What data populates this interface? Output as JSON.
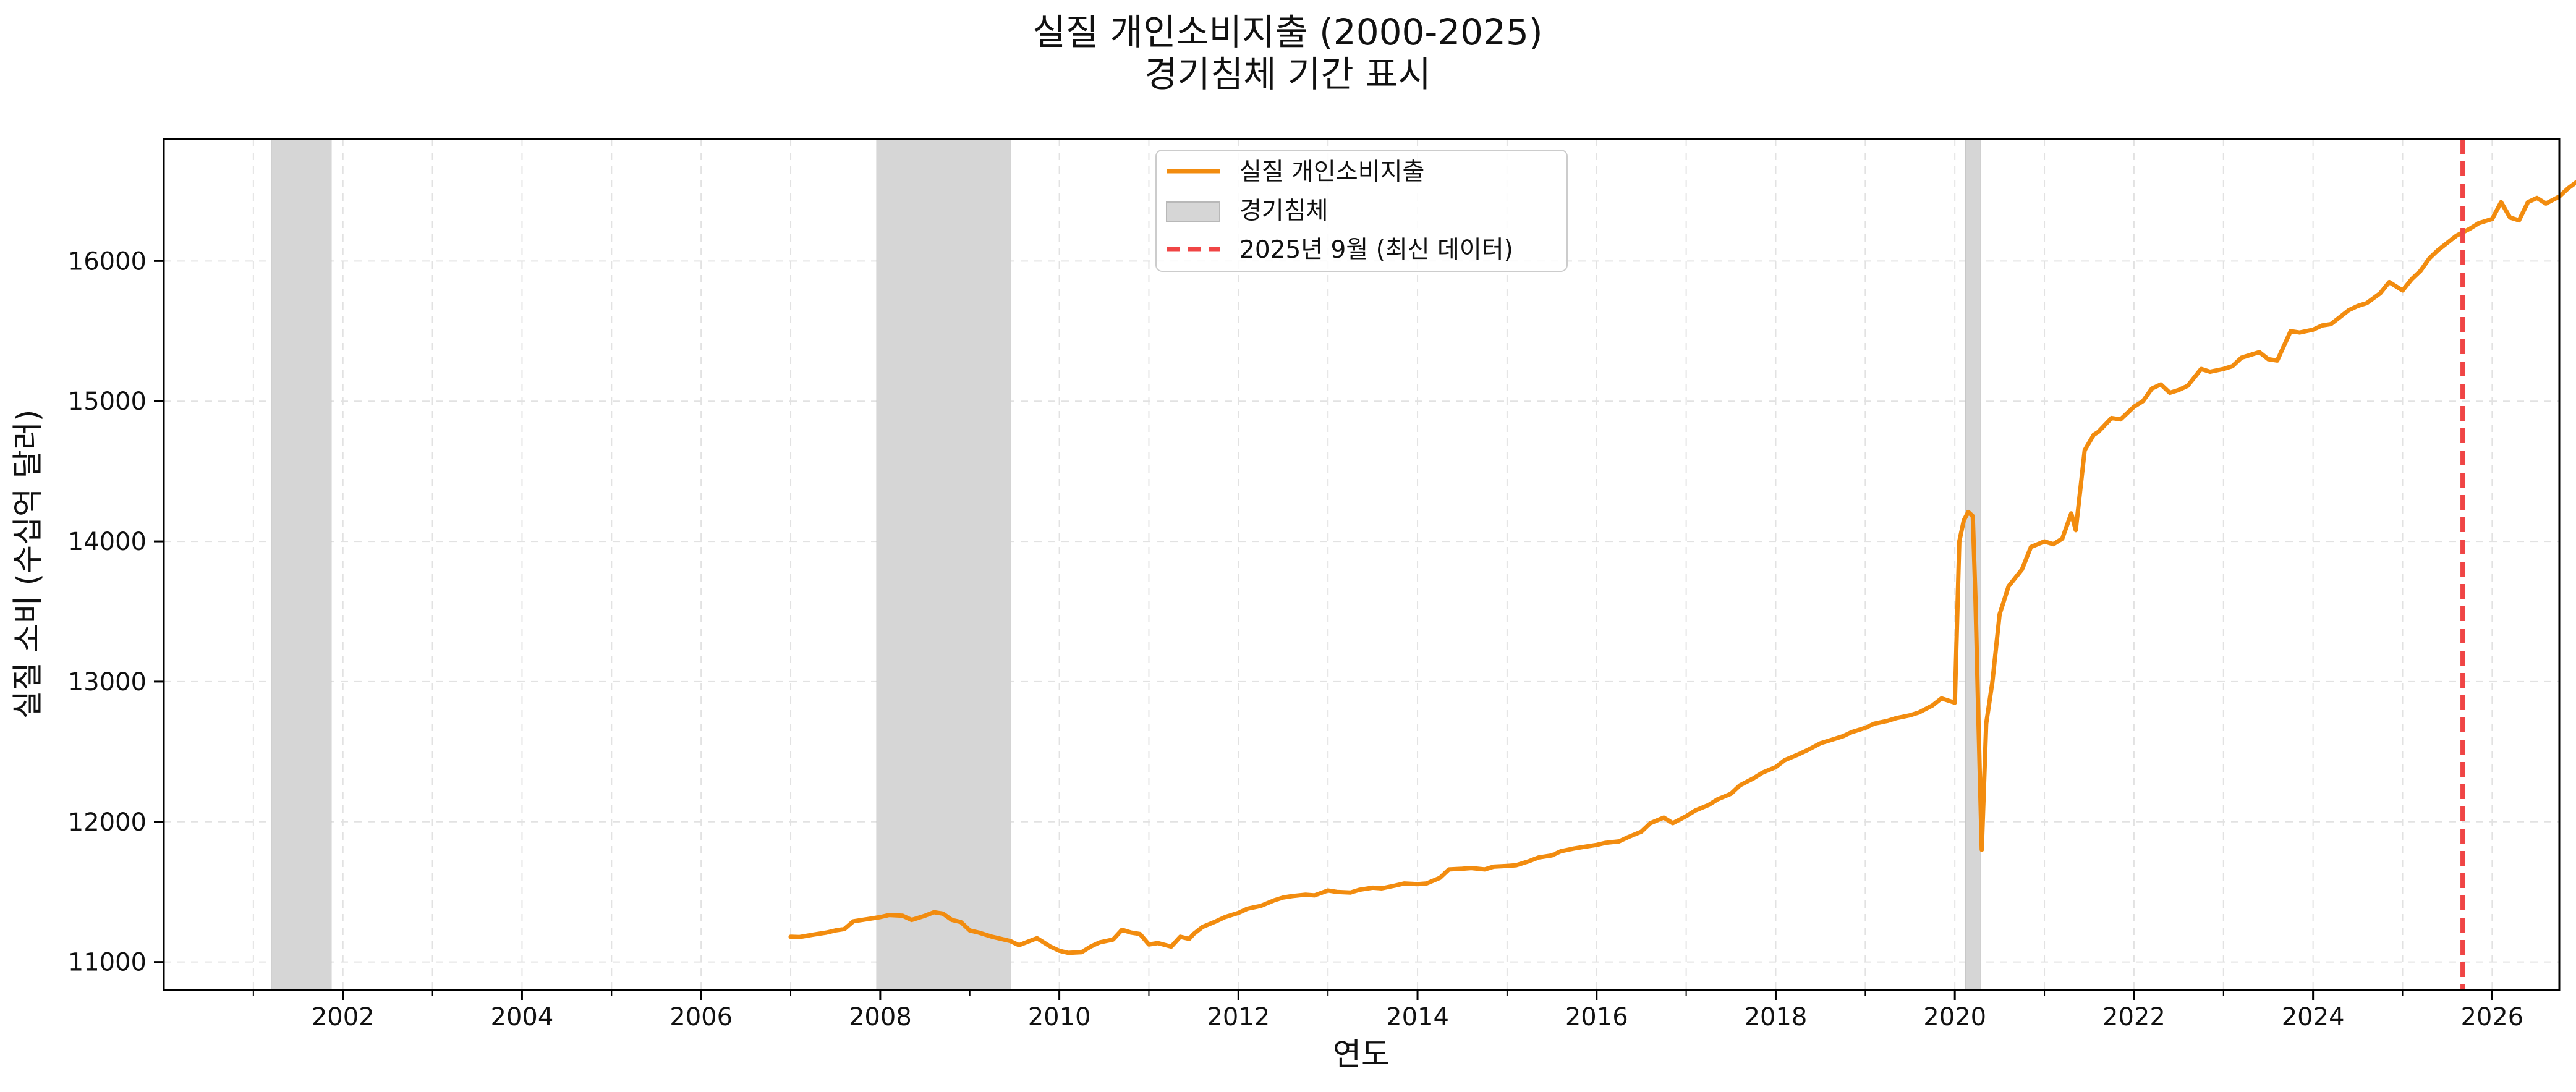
{
  "chart_data": {
    "type": "line",
    "title": "실질 개인소비지출 (2000-2025)",
    "subtitle": "경기침체 기간 표시",
    "xlabel": "연도",
    "ylabel": "실질 소비 (수십억 달러)",
    "xlim": [
      2000.0,
      2026.75
    ],
    "ylim": [
      10800,
      16870
    ],
    "x_ticks": [
      "2002",
      "2004",
      "2006",
      "2008",
      "2010",
      "2012",
      "2014",
      "2016",
      "2018",
      "2020",
      "2022",
      "2024",
      "2026"
    ],
    "y_ticks": [
      "11000",
      "12000",
      "13000",
      "14000",
      "15000",
      "16000"
    ],
    "grid": true,
    "legend_position": "top-center",
    "legend": {
      "series_label": "실질 개인소비지출",
      "recession_label": "경기침체",
      "latest_label": "2025년 9월 (최신 데이터)"
    },
    "colors": {
      "series": "#F28C0F",
      "recession": "#D6D6D6",
      "latest_line": "#F04545",
      "grid": "#E2E2E2"
    },
    "recessions": [
      [
        2001.2,
        2001.87
      ],
      [
        2007.96,
        2009.46
      ],
      [
        2020.12,
        2020.29
      ]
    ],
    "latest_x": 2025.67,
    "series": [
      {
        "name": "실질 개인소비지출",
        "points": [
          [
            2007.0,
            11180
          ],
          [
            2007.1,
            11178
          ],
          [
            2007.25,
            11195
          ],
          [
            2007.4,
            11210
          ],
          [
            2007.5,
            11225
          ],
          [
            2007.6,
            11235
          ],
          [
            2007.7,
            11290
          ],
          [
            2007.85,
            11305
          ],
          [
            2008.0,
            11320
          ],
          [
            2008.1,
            11335
          ],
          [
            2008.25,
            11330
          ],
          [
            2008.35,
            11300
          ],
          [
            2008.5,
            11330
          ],
          [
            2008.6,
            11355
          ],
          [
            2008.7,
            11345
          ],
          [
            2008.8,
            11300
          ],
          [
            2008.9,
            11285
          ],
          [
            2009.0,
            11225
          ],
          [
            2009.1,
            11210
          ],
          [
            2009.25,
            11180
          ],
          [
            2009.35,
            11165
          ],
          [
            2009.45,
            11150
          ],
          [
            2009.55,
            11120
          ],
          [
            2009.65,
            11145
          ],
          [
            2009.75,
            11170
          ],
          [
            2009.9,
            11110
          ],
          [
            2010.0,
            11080
          ],
          [
            2010.1,
            11065
          ],
          [
            2010.25,
            11070
          ],
          [
            2010.35,
            11110
          ],
          [
            2010.45,
            11140
          ],
          [
            2010.6,
            11160
          ],
          [
            2010.7,
            11230
          ],
          [
            2010.8,
            11210
          ],
          [
            2010.9,
            11200
          ],
          [
            2011.0,
            11125
          ],
          [
            2011.1,
            11135
          ],
          [
            2011.25,
            11110
          ],
          [
            2011.35,
            11180
          ],
          [
            2011.45,
            11165
          ],
          [
            2011.5,
            11200
          ],
          [
            2011.6,
            11250
          ],
          [
            2011.75,
            11290
          ],
          [
            2011.85,
            11320
          ],
          [
            2012.0,
            11350
          ],
          [
            2012.1,
            11380
          ],
          [
            2012.25,
            11400
          ],
          [
            2012.4,
            11440
          ],
          [
            2012.5,
            11460
          ],
          [
            2012.6,
            11470
          ],
          [
            2012.75,
            11480
          ],
          [
            2012.85,
            11475
          ],
          [
            2013.0,
            11510
          ],
          [
            2013.1,
            11500
          ],
          [
            2013.25,
            11495
          ],
          [
            2013.35,
            11515
          ],
          [
            2013.5,
            11530
          ],
          [
            2013.6,
            11525
          ],
          [
            2013.75,
            11545
          ],
          [
            2013.85,
            11560
          ],
          [
            2014.0,
            11555
          ],
          [
            2014.1,
            11560
          ],
          [
            2014.25,
            11600
          ],
          [
            2014.35,
            11660
          ],
          [
            2014.5,
            11665
          ],
          [
            2014.6,
            11670
          ],
          [
            2014.75,
            11660
          ],
          [
            2014.85,
            11680
          ],
          [
            2015.0,
            11685
          ],
          [
            2015.1,
            11690
          ],
          [
            2015.25,
            11720
          ],
          [
            2015.35,
            11745
          ],
          [
            2015.5,
            11760
          ],
          [
            2015.6,
            11790
          ],
          [
            2015.75,
            11810
          ],
          [
            2015.85,
            11820
          ],
          [
            2016.0,
            11835
          ],
          [
            2016.1,
            11850
          ],
          [
            2016.25,
            11860
          ],
          [
            2016.35,
            11890
          ],
          [
            2016.5,
            11930
          ],
          [
            2016.6,
            11990
          ],
          [
            2016.75,
            12030
          ],
          [
            2016.85,
            11990
          ],
          [
            2017.0,
            12040
          ],
          [
            2017.1,
            12080
          ],
          [
            2017.25,
            12120
          ],
          [
            2017.35,
            12160
          ],
          [
            2017.5,
            12200
          ],
          [
            2017.6,
            12260
          ],
          [
            2017.75,
            12310
          ],
          [
            2017.85,
            12350
          ],
          [
            2018.0,
            12390
          ],
          [
            2018.1,
            12440
          ],
          [
            2018.25,
            12480
          ],
          [
            2018.35,
            12510
          ],
          [
            2018.5,
            12560
          ],
          [
            2018.6,
            12580
          ],
          [
            2018.75,
            12610
          ],
          [
            2018.85,
            12640
          ],
          [
            2019.0,
            12670
          ],
          [
            2019.1,
            12700
          ],
          [
            2019.25,
            12720
          ],
          [
            2019.35,
            12740
          ],
          [
            2019.5,
            12760
          ],
          [
            2019.6,
            12780
          ],
          [
            2019.75,
            12830
          ],
          [
            2019.85,
            12880
          ],
          [
            2020.0,
            12850
          ],
          [
            2020.05,
            14000
          ],
          [
            2020.1,
            14150
          ],
          [
            2020.15,
            14210
          ],
          [
            2020.2,
            14180
          ],
          [
            2020.23,
            13600
          ],
          [
            2020.26,
            12800
          ],
          [
            2020.3,
            11800
          ],
          [
            2020.35,
            12700
          ],
          [
            2020.42,
            13000
          ],
          [
            2020.5,
            13480
          ],
          [
            2020.6,
            13680
          ],
          [
            2020.75,
            13800
          ],
          [
            2020.85,
            13960
          ],
          [
            2021.0,
            14000
          ],
          [
            2021.1,
            13980
          ],
          [
            2021.2,
            14020
          ],
          [
            2021.3,
            14200
          ],
          [
            2021.35,
            14080
          ],
          [
            2021.45,
            14650
          ],
          [
            2021.55,
            14760
          ],
          [
            2021.6,
            14780
          ],
          [
            2021.75,
            14880
          ],
          [
            2021.85,
            14870
          ],
          [
            2022.0,
            14960
          ],
          [
            2022.1,
            15000
          ],
          [
            2022.2,
            15090
          ],
          [
            2022.3,
            15120
          ],
          [
            2022.4,
            15060
          ],
          [
            2022.5,
            15080
          ],
          [
            2022.6,
            15110
          ],
          [
            2022.75,
            15230
          ],
          [
            2022.85,
            15210
          ],
          [
            2023.0,
            15230
          ],
          [
            2023.1,
            15250
          ],
          [
            2023.2,
            15310
          ],
          [
            2023.3,
            15330
          ],
          [
            2023.4,
            15350
          ],
          [
            2023.5,
            15300
          ],
          [
            2023.6,
            15290
          ],
          [
            2023.75,
            15500
          ],
          [
            2023.85,
            15490
          ],
          [
            2024.0,
            15510
          ],
          [
            2024.1,
            15540
          ],
          [
            2024.2,
            15550
          ],
          [
            2024.3,
            15600
          ],
          [
            2024.4,
            15650
          ],
          [
            2024.5,
            15680
          ],
          [
            2024.6,
            15700
          ],
          [
            2024.75,
            15770
          ],
          [
            2024.85,
            15850
          ],
          [
            2025.0,
            15790
          ],
          [
            2025.1,
            15870
          ],
          [
            2025.2,
            15930
          ],
          [
            2025.3,
            16020
          ],
          [
            2025.4,
            16080
          ],
          [
            2025.5,
            16130
          ],
          [
            2025.6,
            16180
          ],
          [
            2025.75,
            16230
          ],
          [
            2025.85,
            16270
          ],
          [
            2026.0,
            16300
          ],
          [
            2026.1,
            16420
          ],
          [
            2026.2,
            16310
          ],
          [
            2026.3,
            16290
          ],
          [
            2026.4,
            16420
          ],
          [
            2026.5,
            16450
          ],
          [
            2026.6,
            16410
          ],
          [
            2026.75,
            16460
          ],
          [
            2026.85,
            16520
          ],
          [
            2027.0,
            16590
          ]
        ]
      }
    ]
  }
}
